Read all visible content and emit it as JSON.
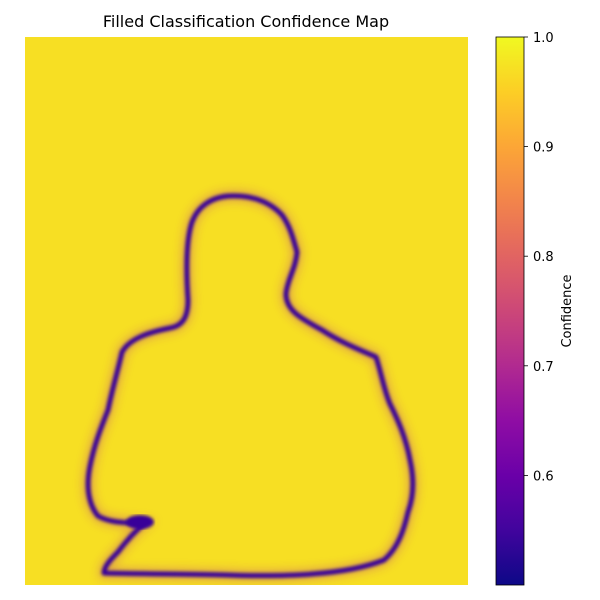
{
  "chart_data": {
    "type": "heatmap",
    "title": "Filled Classification Confidence Map",
    "xlabel": "",
    "ylabel": "",
    "axes_visible": false,
    "grid": false,
    "colormap": "plasma",
    "background_value": 0.97,
    "boundary_min_value": 0.5,
    "interior_value": 0.99,
    "colorbar": {
      "label": "Confidence",
      "placement": "right",
      "range": [
        0.5,
        1.0
      ],
      "ticks": [
        {
          "value": 0.6,
          "label": "0.6"
        },
        {
          "value": 0.7,
          "label": "0.7"
        },
        {
          "value": 0.8,
          "label": "0.8"
        },
        {
          "value": 0.9,
          "label": "0.9"
        },
        {
          "value": 1.0,
          "label": "1.0"
        }
      ]
    },
    "colors": {
      "low": "#0d0887",
      "high": "#f0f921"
    }
  }
}
